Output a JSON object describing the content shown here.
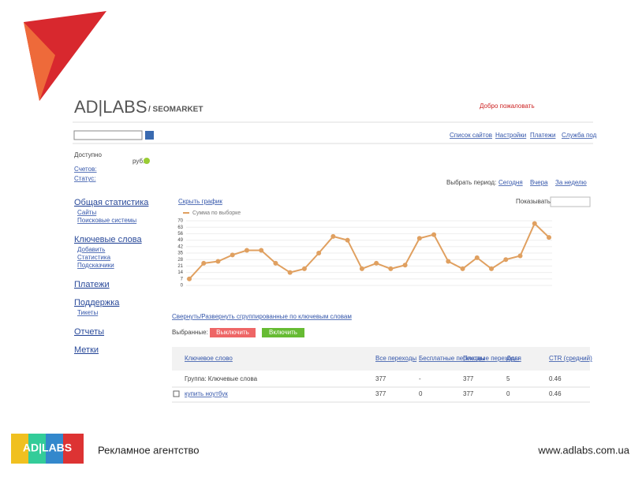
{
  "header": {
    "logo": "AD|LABS",
    "product": "/ SEOMARKET",
    "welcome": "Добро пожаловать"
  },
  "nav": [
    "Список сайтов",
    "Настройки",
    "Платежи",
    "Служба под"
  ],
  "account": {
    "available": "Доступно",
    "currency": "руб.",
    "accounts": "Счетов:",
    "status": "Статус:"
  },
  "sidebar": [
    {
      "title": "Общая статистика",
      "items": [
        "Сайты",
        "Поисковые системы"
      ]
    },
    {
      "title": "Ключевые слова",
      "items": [
        "Добавить",
        "Статистика",
        "Подсказчики"
      ]
    },
    {
      "title": "Платежи",
      "items": []
    },
    {
      "title": "Поддержка",
      "items": [
        "Тикеты"
      ]
    },
    {
      "title": "Отчеты",
      "items": []
    },
    {
      "title": "Метки",
      "items": []
    }
  ],
  "period": {
    "label": "Выбрать период:",
    "options": [
      "Сегодня",
      "Вчера",
      "За неделю"
    ]
  },
  "show_by": "Показывать по:",
  "chart_toggle": "Скрыть график",
  "chart_data": {
    "type": "line",
    "series": [
      {
        "name": "Сумма по выборке",
        "color": "#e0a060",
        "values": [
          7,
          24,
          26,
          33,
          38,
          38,
          24,
          14,
          18,
          35,
          53,
          49,
          18,
          24,
          18,
          22,
          51,
          55,
          26,
          18,
          30,
          18,
          28,
          32,
          67,
          52
        ]
      }
    ],
    "ylim": [
      0,
      70
    ],
    "yticks": [
      0,
      7,
      14,
      21,
      28,
      35,
      42,
      49,
      56,
      63,
      70
    ],
    "grid": true
  },
  "bulk_link": "Свернуть/Развернуть сгруппированные по ключевым словам",
  "selected": "Выбранные:",
  "buttons": {
    "off": "Выключить",
    "on": "Включить"
  },
  "table": {
    "headers": [
      "Ключевое слово",
      "Все переходы",
      "Бесплатные переходы",
      "Платные переходы",
      "Доля",
      "CTR (средний)"
    ],
    "rows": [
      [
        "Группа: Ключевые слова",
        "377",
        "-",
        "377",
        "5",
        "0.46"
      ],
      [
        "купить ноутбук",
        "377",
        "0",
        "377",
        "0",
        "0.46"
      ]
    ]
  },
  "footer": {
    "agency": "Рекламное агентство",
    "url": "www.adlabs.com.ua"
  }
}
